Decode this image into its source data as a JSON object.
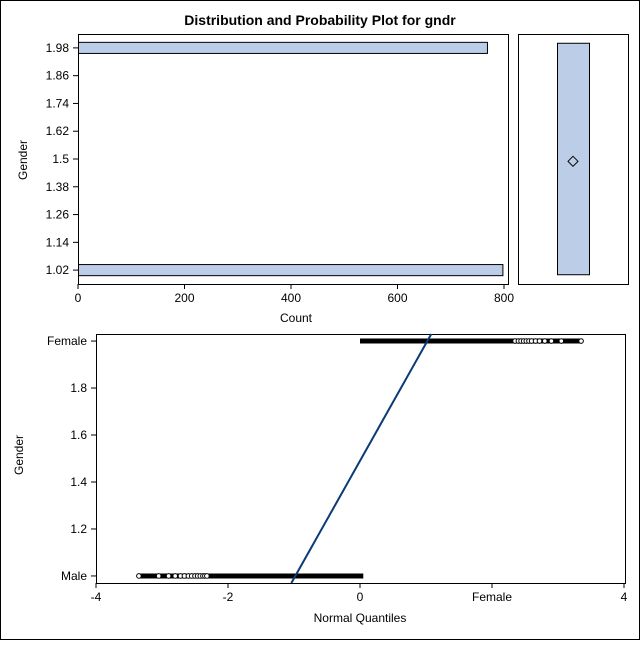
{
  "chart_data": [
    {
      "type": "bar",
      "orientation": "horizontal",
      "title": "Distribution and Probability Plot for gndr",
      "xlabel": "Count",
      "ylabel": "Gender",
      "y_ticks": [
        "1.98",
        "1.86",
        "1.74",
        "1.62",
        "1.5",
        "1.38",
        "1.26",
        "1.14",
        "1.02"
      ],
      "y_tick_values": [
        1.98,
        1.86,
        1.74,
        1.62,
        1.5,
        1.38,
        1.26,
        1.14,
        1.02
      ],
      "x_ticks": [
        "0",
        "200",
        "400",
        "600",
        "800"
      ],
      "x_tick_values": [
        0,
        200,
        400,
        600,
        800
      ],
      "xlim": [
        0,
        800
      ],
      "ylim": [
        0.96,
        2.04
      ],
      "categories": [
        1.98,
        1.02
      ],
      "values": [
        768,
        797
      ],
      "bar_height": 0.048,
      "fill_color": "#bccde8",
      "grid": false
    },
    {
      "type": "box",
      "ylim": [
        0.96,
        2.04
      ],
      "q1": 1.0,
      "q3": 2.0,
      "mean": 1.49,
      "fill_color": "#bccde8"
    },
    {
      "type": "scatter",
      "subtype": "normal-probability-plot",
      "xlabel": "Normal Quantiles",
      "ylabel": "Gender",
      "x_ticks": [
        "-4",
        "-2",
        "0",
        "Female",
        "4"
      ],
      "x_tick_values": [
        -4,
        -2,
        0,
        2,
        4
      ],
      "y_ticks": [
        "Female",
        "1.8",
        "1.6",
        "1.4",
        "1.2",
        "Male"
      ],
      "y_tick_values": [
        2,
        1.8,
        1.6,
        1.4,
        1.2,
        1
      ],
      "xlim": [
        -4,
        4
      ],
      "ylim": [
        0.97,
        2.03
      ],
      "male": {
        "value": 1,
        "x_min": -3.35,
        "x_max": 0.05,
        "open_points": [
          -3.35,
          -3.05,
          -2.9,
          -2.8,
          -2.72,
          -2.66,
          -2.6,
          -2.55,
          -2.5,
          -2.46,
          -2.42,
          -2.38,
          -2.35,
          -2.32
        ]
      },
      "female": {
        "value": 2,
        "x_min": 0.0,
        "x_max": 3.35,
        "open_points": [
          2.35,
          2.4,
          2.44,
          2.48,
          2.52,
          2.56,
          2.6,
          2.66,
          2.72,
          2.8,
          2.9,
          3.05,
          3.35
        ]
      },
      "fit_line": {
        "mean": 1.49,
        "sd": 0.5
      },
      "line_color": "#0b3a77"
    }
  ]
}
